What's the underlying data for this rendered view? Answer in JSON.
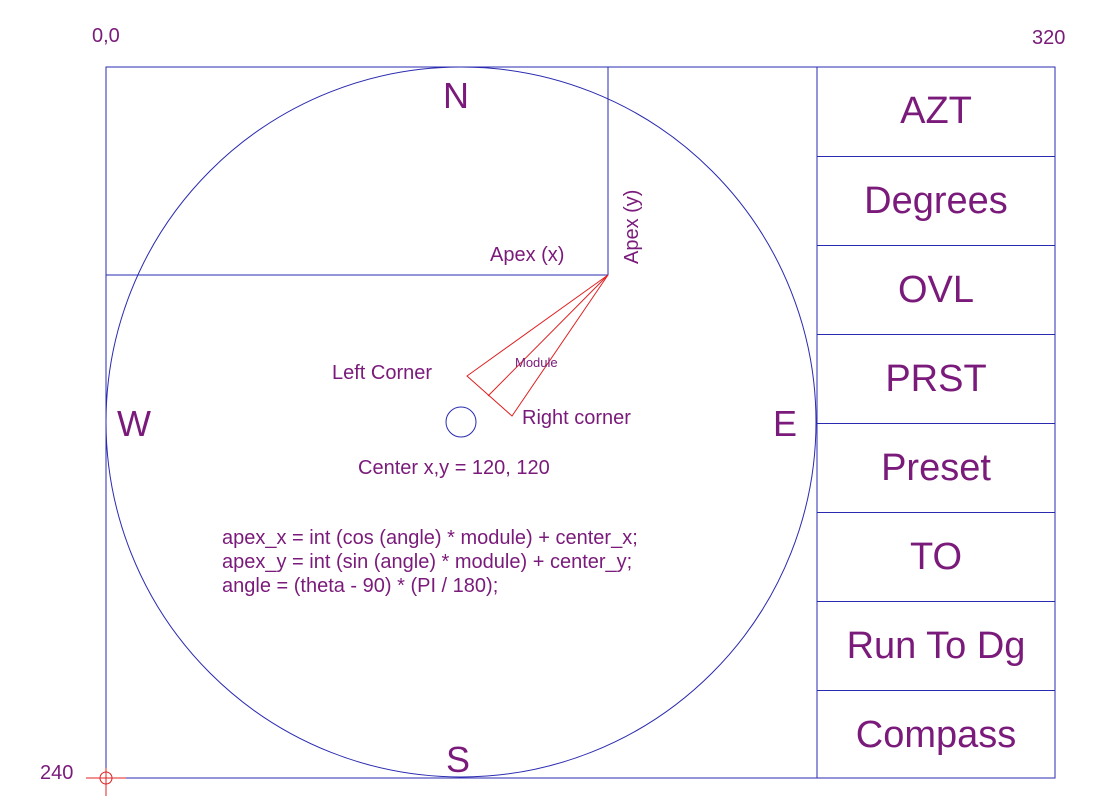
{
  "corner_labels": {
    "origin": "0,0",
    "max_x": "320",
    "max_y": "240"
  },
  "compass": {
    "north": "N",
    "south": "S",
    "west": "W",
    "east": "E"
  },
  "annotations": {
    "apex_x": "Apex (x)",
    "apex_y": "Apex (y)",
    "left_corner": "Left Corner",
    "right_corner": "Right corner",
    "module": "Module",
    "center": "Center x,y = 120, 120"
  },
  "formulas": [
    "apex_x = int (cos (angle) * module) + center_x;",
    "apex_y = int (sin (angle) * module) + center_y;",
    "angle = (theta - 90) * (PI / 180);"
  ],
  "menu": [
    {
      "label": "AZT"
    },
    {
      "label": "Degrees"
    },
    {
      "label": "OVL"
    },
    {
      "label": "PRST"
    },
    {
      "label": "Preset"
    },
    {
      "label": "TO"
    },
    {
      "label": "Run To Dg"
    },
    {
      "label": "Compass"
    }
  ],
  "colors": {
    "line": "#2a2ab0",
    "needle": "#e02020",
    "text": "#7a1a7a"
  }
}
